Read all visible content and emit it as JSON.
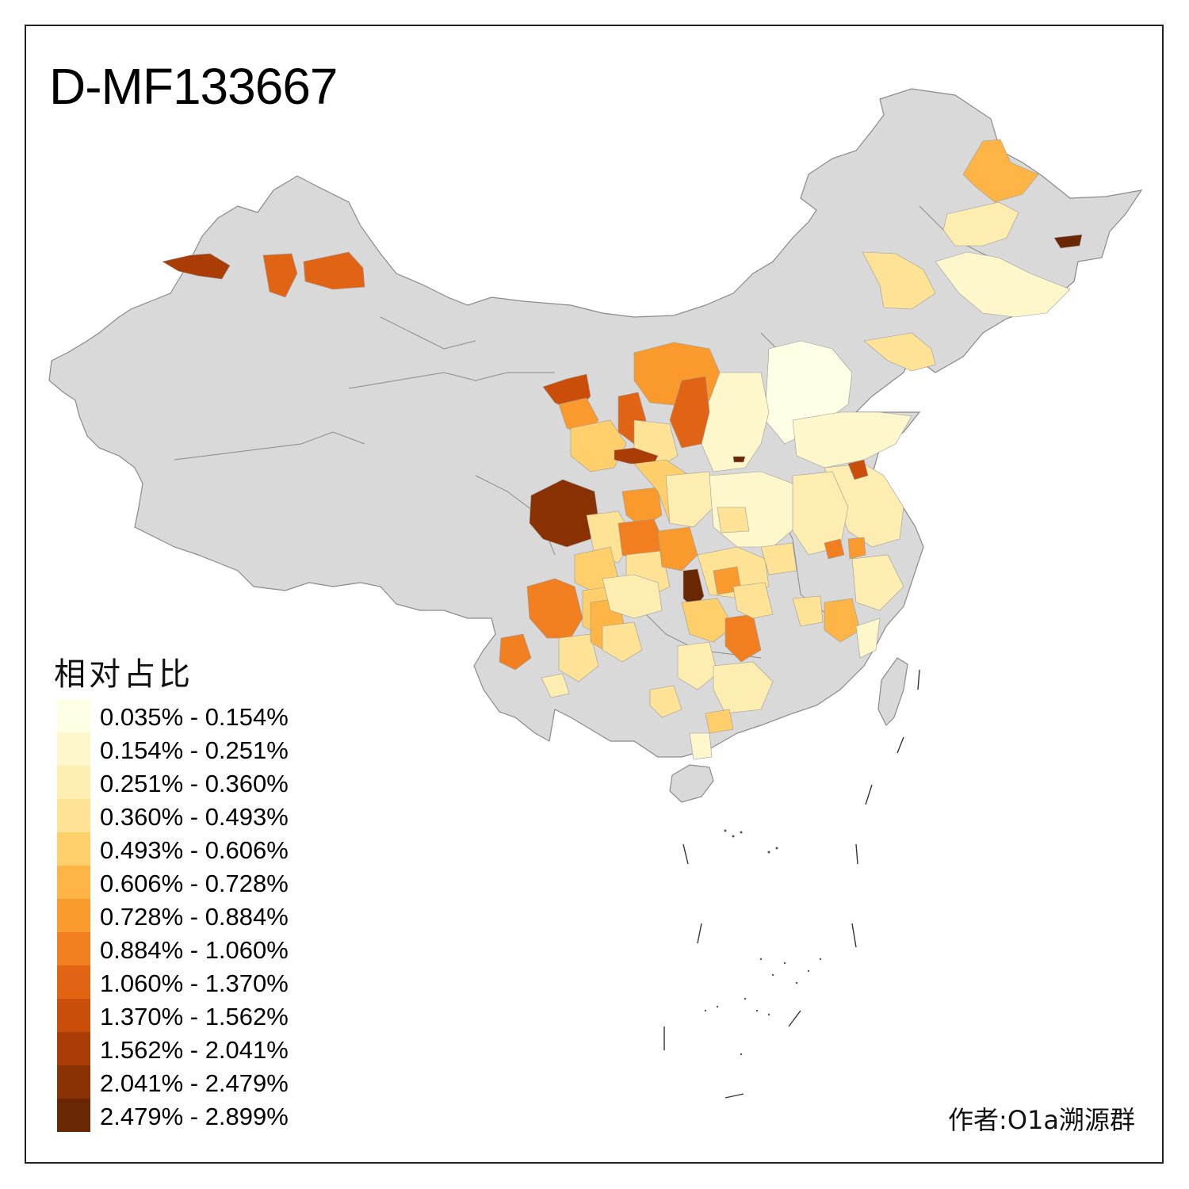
{
  "title": "D-MF133667",
  "legend": {
    "title": "相对占比",
    "items": [
      {
        "label": "0.035% - 0.154%",
        "color": "#FFFFE5"
      },
      {
        "label": "0.154% - 0.251%",
        "color": "#FFF7CC"
      },
      {
        "label": "0.251% - 0.360%",
        "color": "#FEEDB0"
      },
      {
        "label": "0.360% - 0.493%",
        "color": "#FEE295"
      },
      {
        "label": "0.493% - 0.606%",
        "color": "#FECF6A"
      },
      {
        "label": "0.606% - 0.728%",
        "color": "#FEB545"
      },
      {
        "label": "0.728% - 0.884%",
        "color": "#FB9A2C"
      },
      {
        "label": "0.884% - 1.060%",
        "color": "#F17F20"
      },
      {
        "label": "1.060% - 1.370%",
        "color": "#E06414"
      },
      {
        "label": "1.370% - 1.562%",
        "color": "#CA4D0A"
      },
      {
        "label": "1.562% - 2.041%",
        "color": "#AA3C05"
      },
      {
        "label": "2.041% - 2.479%",
        "color": "#8A3104"
      },
      {
        "label": "2.479% - 2.899%",
        "color": "#6A2704"
      }
    ]
  },
  "credit": "作者:O1a溯源群",
  "colors": {
    "base_land": "#D9D9D9",
    "border": "#8A8A8A",
    "frame": "#222222"
  }
}
